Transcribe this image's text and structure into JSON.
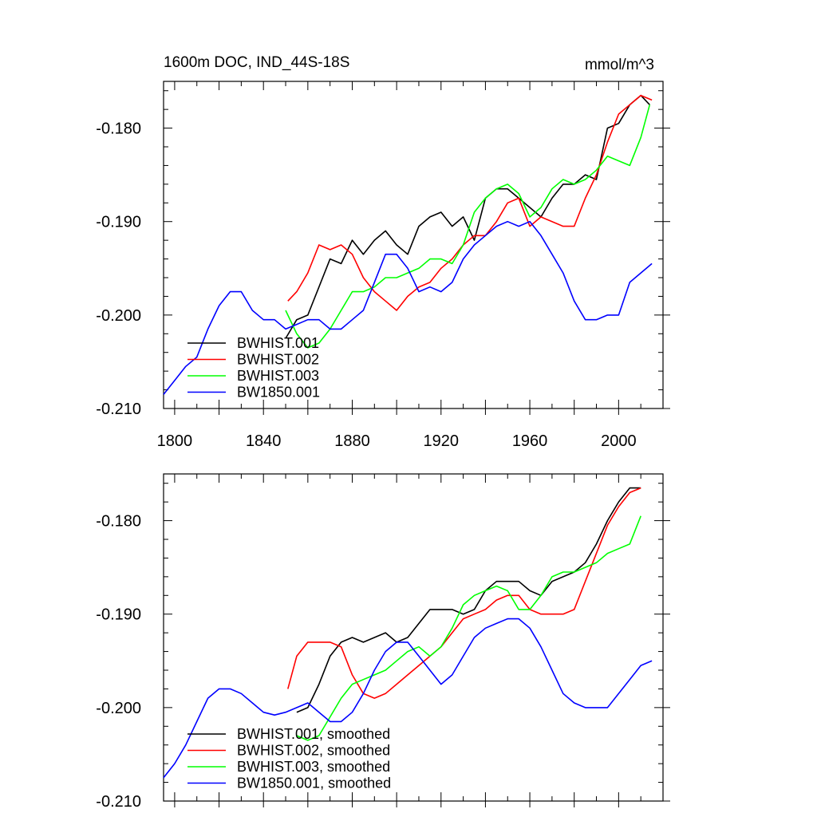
{
  "title_left": "1600m DOC, IND_44S-18S",
  "title_right": "mmol/m^3",
  "chart_data": [
    {
      "type": "line",
      "xlim": [
        1795,
        2020
      ],
      "ylim": [
        -0.21,
        -0.175
      ],
      "xticks": [
        1800,
        1840,
        1880,
        1920,
        1960,
        2000
      ],
      "xticklabels": [
        "1800",
        "1840",
        "1880",
        "1920",
        "1960",
        "2000"
      ],
      "yticks": [
        -0.18,
        -0.19,
        -0.2,
        -0.21
      ],
      "yticklabels": [
        "-0.180",
        "-0.190",
        "-0.200",
        "-0.210"
      ],
      "legend_position": "bottom-left",
      "series": [
        {
          "name": "BWHIST.001",
          "color": "#000000",
          "x": [
            1850,
            1855,
            1860,
            1865,
            1870,
            1875,
            1880,
            1885,
            1890,
            1895,
            1900,
            1905,
            1910,
            1915,
            1920,
            1925,
            1930,
            1935,
            1940,
            1945,
            1950,
            1955,
            1960,
            1965,
            1970,
            1975,
            1980,
            1985,
            1990,
            1995,
            2000,
            2005,
            2010,
            2014
          ],
          "y": [
            -0.2025,
            -0.2005,
            -0.2,
            -0.197,
            -0.194,
            -0.1945,
            -0.192,
            -0.1935,
            -0.192,
            -0.191,
            -0.1925,
            -0.1935,
            -0.1905,
            -0.1895,
            -0.189,
            -0.1905,
            -0.1895,
            -0.192,
            -0.1875,
            -0.1865,
            -0.1865,
            -0.1875,
            -0.1885,
            -0.1895,
            -0.1875,
            -0.186,
            -0.186,
            -0.185,
            -0.1855,
            -0.18,
            -0.1795,
            -0.1775,
            -0.1765,
            -0.1775
          ]
        },
        {
          "name": "BWHIST.002",
          "color": "#ff0000",
          "x": [
            1851,
            1855,
            1860,
            1865,
            1870,
            1875,
            1880,
            1885,
            1890,
            1895,
            1900,
            1905,
            1910,
            1915,
            1920,
            1925,
            1930,
            1935,
            1940,
            1945,
            1950,
            1955,
            1960,
            1965,
            1970,
            1975,
            1980,
            1985,
            1990,
            1995,
            2000,
            2005,
            2010,
            2015
          ],
          "y": [
            -0.1985,
            -0.1975,
            -0.1955,
            -0.1925,
            -0.193,
            -0.1925,
            -0.1935,
            -0.196,
            -0.1975,
            -0.1985,
            -0.1995,
            -0.198,
            -0.197,
            -0.1965,
            -0.195,
            -0.194,
            -0.1925,
            -0.1915,
            -0.1915,
            -0.19,
            -0.188,
            -0.1875,
            -0.1905,
            -0.1895,
            -0.19,
            -0.1905,
            -0.1905,
            -0.1875,
            -0.185,
            -0.1815,
            -0.1785,
            -0.1775,
            -0.1765,
            -0.177
          ]
        },
        {
          "name": "BWHIST.003",
          "color": "#00ff00",
          "x": [
            1850,
            1855,
            1860,
            1865,
            1870,
            1875,
            1880,
            1885,
            1890,
            1895,
            1900,
            1905,
            1910,
            1915,
            1920,
            1925,
            1930,
            1935,
            1940,
            1945,
            1950,
            1955,
            1960,
            1965,
            1970,
            1975,
            1980,
            1985,
            1990,
            1995,
            2000,
            2005,
            2010,
            2014
          ],
          "y": [
            -0.1995,
            -0.202,
            -0.2035,
            -0.203,
            -0.2015,
            -0.1995,
            -0.1975,
            -0.1975,
            -0.197,
            -0.196,
            -0.196,
            -0.1955,
            -0.195,
            -0.194,
            -0.194,
            -0.1945,
            -0.1925,
            -0.189,
            -0.1875,
            -0.1865,
            -0.186,
            -0.187,
            -0.1895,
            -0.1885,
            -0.1865,
            -0.1855,
            -0.186,
            -0.1855,
            -0.1845,
            -0.183,
            -0.1835,
            -0.184,
            -0.181,
            -0.1775
          ]
        },
        {
          "name": "BW1850.001",
          "color": "#0000ff",
          "x": [
            1795,
            1800,
            1805,
            1810,
            1815,
            1820,
            1825,
            1830,
            1835,
            1840,
            1845,
            1850,
            1855,
            1860,
            1865,
            1870,
            1875,
            1880,
            1885,
            1890,
            1895,
            1900,
            1905,
            1910,
            1915,
            1920,
            1925,
            1930,
            1935,
            1940,
            1945,
            1950,
            1955,
            1960,
            1965,
            1970,
            1975,
            1980,
            1985,
            1990,
            1995,
            2000,
            2005,
            2010,
            2015
          ],
          "y": [
            -0.2085,
            -0.207,
            -0.2055,
            -0.2045,
            -0.2015,
            -0.199,
            -0.1975,
            -0.1975,
            -0.1995,
            -0.2005,
            -0.2005,
            -0.2015,
            -0.201,
            -0.2005,
            -0.2005,
            -0.2015,
            -0.2015,
            -0.2005,
            -0.1995,
            -0.1965,
            -0.1935,
            -0.1935,
            -0.195,
            -0.1975,
            -0.197,
            -0.1975,
            -0.1965,
            -0.194,
            -0.1925,
            -0.1915,
            -0.1905,
            -0.19,
            -0.1905,
            -0.19,
            -0.1915,
            -0.1935,
            -0.1955,
            -0.1985,
            -0.2005,
            -0.2005,
            -0.2,
            -0.2,
            -0.1965,
            -0.1955,
            -0.1945
          ]
        }
      ]
    },
    {
      "type": "line",
      "xlim": [
        1795,
        2020
      ],
      "ylim": [
        -0.21,
        -0.175
      ],
      "yticks": [
        -0.18,
        -0.19,
        -0.2,
        -0.21
      ],
      "yticklabels": [
        "-0.180",
        "-0.190",
        "-0.200",
        "-0.210"
      ],
      "legend_position": "bottom-left",
      "series": [
        {
          "name": "BWHIST.001, smoothed",
          "color": "#000000",
          "x": [
            1855,
            1860,
            1865,
            1870,
            1875,
            1880,
            1885,
            1890,
            1895,
            1900,
            1905,
            1910,
            1915,
            1920,
            1925,
            1930,
            1935,
            1940,
            1945,
            1950,
            1955,
            1960,
            1965,
            1970,
            1975,
            1980,
            1985,
            1990,
            1995,
            2000,
            2005,
            2010
          ],
          "y": [
            -0.2005,
            -0.2,
            -0.1975,
            -0.1945,
            -0.193,
            -0.1925,
            -0.193,
            -0.1925,
            -0.192,
            -0.193,
            -0.1925,
            -0.191,
            -0.1895,
            -0.1895,
            -0.1895,
            -0.19,
            -0.1895,
            -0.1875,
            -0.1865,
            -0.1865,
            -0.1865,
            -0.1875,
            -0.188,
            -0.1865,
            -0.186,
            -0.1855,
            -0.1845,
            -0.1825,
            -0.18,
            -0.178,
            -0.1765,
            -0.1765
          ]
        },
        {
          "name": "BWHIST.002, smoothed",
          "color": "#ff0000",
          "x": [
            1851,
            1855,
            1860,
            1865,
            1870,
            1875,
            1880,
            1885,
            1890,
            1895,
            1900,
            1905,
            1910,
            1915,
            1920,
            1925,
            1930,
            1935,
            1940,
            1945,
            1950,
            1955,
            1960,
            1965,
            1970,
            1975,
            1980,
            1985,
            1990,
            1995,
            2000,
            2005,
            2010
          ],
          "y": [
            -0.198,
            -0.1945,
            -0.193,
            -0.193,
            -0.193,
            -0.1935,
            -0.1965,
            -0.1985,
            -0.199,
            -0.1985,
            -0.1975,
            -0.1965,
            -0.1955,
            -0.1945,
            -0.1935,
            -0.192,
            -0.1905,
            -0.19,
            -0.1895,
            -0.1885,
            -0.188,
            -0.188,
            -0.1895,
            -0.19,
            -0.19,
            -0.19,
            -0.1895,
            -0.1865,
            -0.1835,
            -0.1805,
            -0.1785,
            -0.177,
            -0.1765
          ]
        },
        {
          "name": "BWHIST.003, smoothed",
          "color": "#00ff00",
          "x": [
            1855,
            1860,
            1865,
            1870,
            1875,
            1880,
            1885,
            1890,
            1895,
            1900,
            1905,
            1910,
            1915,
            1920,
            1925,
            1930,
            1935,
            1940,
            1945,
            1950,
            1955,
            1960,
            1965,
            1970,
            1975,
            1980,
            1985,
            1990,
            1995,
            2000,
            2005,
            2010
          ],
          "y": [
            -0.203,
            -0.2035,
            -0.203,
            -0.201,
            -0.199,
            -0.1975,
            -0.197,
            -0.1965,
            -0.196,
            -0.195,
            -0.194,
            -0.1935,
            -0.1945,
            -0.1935,
            -0.1915,
            -0.189,
            -0.188,
            -0.1875,
            -0.187,
            -0.1875,
            -0.1895,
            -0.1895,
            -0.188,
            -0.186,
            -0.1855,
            -0.1855,
            -0.185,
            -0.1845,
            -0.1835,
            -0.183,
            -0.1825,
            -0.1795
          ]
        },
        {
          "name": "BW1850.001, smoothed",
          "color": "#0000ff",
          "x": [
            1795,
            1800,
            1805,
            1810,
            1815,
            1820,
            1825,
            1830,
            1835,
            1840,
            1845,
            1850,
            1855,
            1860,
            1865,
            1870,
            1875,
            1880,
            1885,
            1890,
            1895,
            1900,
            1905,
            1910,
            1915,
            1920,
            1925,
            1930,
            1935,
            1940,
            1945,
            1950,
            1955,
            1960,
            1965,
            1970,
            1975,
            1980,
            1985,
            1990,
            1995,
            2000,
            2005,
            2010,
            2015
          ],
          "y": [
            -0.2075,
            -0.206,
            -0.204,
            -0.2015,
            -0.199,
            -0.198,
            -0.198,
            -0.1985,
            -0.1995,
            -0.2005,
            -0.2008,
            -0.2005,
            -0.2,
            -0.1995,
            -0.2005,
            -0.2015,
            -0.2015,
            -0.2005,
            -0.1985,
            -0.196,
            -0.194,
            -0.193,
            -0.193,
            -0.1945,
            -0.196,
            -0.1975,
            -0.1965,
            -0.1945,
            -0.1925,
            -0.1915,
            -0.191,
            -0.1905,
            -0.1905,
            -0.1915,
            -0.1935,
            -0.196,
            -0.1985,
            -0.1995,
            -0.2,
            -0.2,
            -0.2,
            -0.1985,
            -0.197,
            -0.1955,
            -0.195
          ]
        }
      ]
    }
  ]
}
